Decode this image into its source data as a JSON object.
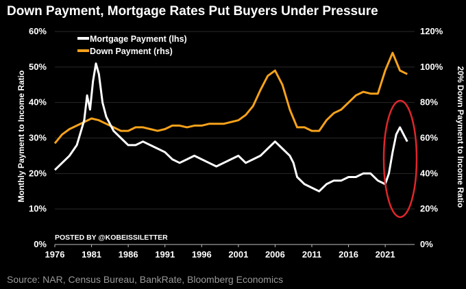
{
  "title": "Down Payment, Mortgage Rates Put Buyers Under Pressure",
  "source": "Source: NAR, Census Bureau, BankRate, Bloomberg Economics",
  "watermark": "POSTED BY @KOBEISSILETTER",
  "colors": {
    "background": "#000000",
    "mortgage": "#ffffff",
    "down_payment": "#f7a21b",
    "highlight_ellipse": "#e0262b",
    "axis": "#bfbfbf"
  },
  "chart_data": {
    "type": "line",
    "x_ticks": [
      "1976",
      "1981",
      "1986",
      "1991",
      "1996",
      "2001",
      "2006",
      "2011",
      "2016",
      "2021"
    ],
    "xlim": [
      1976,
      2025
    ],
    "y_left": {
      "label": "Monthly Payment to Income Ratio",
      "ticks": [
        "0%",
        "10%",
        "20%",
        "30%",
        "40%",
        "50%",
        "60%"
      ],
      "lim": [
        0,
        60
      ]
    },
    "y_right": {
      "label": "20% Down Payment to Income Ratio",
      "ticks": [
        "0%",
        "20%",
        "40%",
        "60%",
        "80%",
        "100%",
        "120%"
      ],
      "lim": [
        0,
        120
      ]
    },
    "legend_position": "top-left",
    "series": [
      {
        "name": "Mortgage Payment (lhs)",
        "axis": "left",
        "x": [
          1976,
          1977,
          1978,
          1979,
          1980,
          1980.4,
          1980.8,
          1981.2,
          1981.6,
          1982,
          1982.5,
          1983,
          1984,
          1985,
          1986,
          1987,
          1988,
          1989,
          1990,
          1991,
          1992,
          1993,
          1994,
          1995,
          1996,
          1997,
          1998,
          1999,
          2000,
          2001,
          2002,
          2003,
          2004,
          2005,
          2006,
          2007,
          2008,
          2008.5,
          2009,
          2010,
          2011,
          2012,
          2013,
          2014,
          2015,
          2016,
          2017,
          2018,
          2019,
          2020,
          2021,
          2021.5,
          2022,
          2022.5,
          2023,
          2023.5,
          2024
        ],
        "y": [
          21,
          23,
          25,
          28,
          35,
          42,
          38,
          46,
          51,
          48,
          40,
          36,
          32,
          30,
          28,
          28,
          29,
          28,
          27,
          26,
          24,
          23,
          24,
          25,
          24,
          23,
          22,
          23,
          24,
          25,
          23,
          24,
          25,
          27,
          29,
          27,
          25,
          23,
          19,
          17,
          16,
          15,
          17,
          18,
          18,
          19,
          19,
          20,
          20,
          18,
          17,
          20,
          26,
          31,
          33,
          31,
          29
        ]
      },
      {
        "name": "Down Payment (rhs)",
        "axis": "right",
        "x": [
          1976,
          1977,
          1978,
          1979,
          1980,
          1981,
          1982,
          1983,
          1984,
          1985,
          1986,
          1987,
          1988,
          1989,
          1990,
          1991,
          1992,
          1993,
          1994,
          1995,
          1996,
          1997,
          1998,
          1999,
          2000,
          2001,
          2002,
          2003,
          2004,
          2005,
          2006,
          2007,
          2008,
          2009,
          2010,
          2011,
          2012,
          2013,
          2014,
          2015,
          2016,
          2017,
          2018,
          2019,
          2020,
          2021,
          2022,
          2023,
          2024
        ],
        "y": [
          57,
          62,
          65,
          67,
          69,
          71,
          70,
          68,
          66,
          64,
          64,
          66,
          66,
          65,
          64,
          65,
          67,
          67,
          66,
          67,
          67,
          68,
          68,
          68,
          69,
          70,
          73,
          78,
          87,
          95,
          98,
          90,
          76,
          66,
          66,
          64,
          64,
          70,
          74,
          76,
          80,
          84,
          86,
          85,
          85,
          98,
          108,
          98,
          96
        ]
      }
    ]
  }
}
